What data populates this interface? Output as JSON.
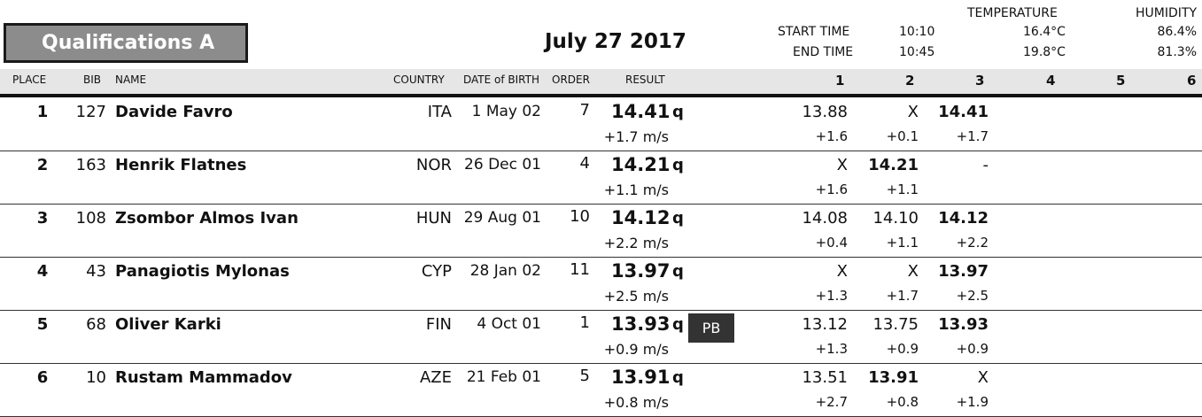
{
  "header": {
    "round": "Qualifications A",
    "date": "July 27 2017",
    "start_time_label": "START TIME",
    "end_time_label": "END TIME",
    "start_time": "10:10",
    "end_time": "10:45",
    "temperature_label": "TEMPERATURE",
    "humidity_label": "HUMIDITY",
    "start_temperature": "16.4°C",
    "end_temperature": "19.8°C",
    "start_humidity": "86.4%",
    "end_humidity": "81.3%"
  },
  "columns": {
    "place": "PLACE",
    "bib": "BIB",
    "name": "NAME",
    "country": "COUNTRY",
    "dob": "DATE of BIRTH",
    "order": "ORDER",
    "result": "RESULT",
    "attempts": [
      "1",
      "2",
      "3",
      "4",
      "5",
      "6"
    ]
  },
  "rows": [
    {
      "place": "1",
      "bib": "127",
      "name": "Davide Favro",
      "country": "ITA",
      "dob": "1 May 02",
      "order": "7",
      "result": "14.41",
      "q": "q",
      "wind": "+1.7 m/s",
      "badge": "",
      "attempts": [
        {
          "mark": "13.88",
          "wind": "+1.6",
          "best": false
        },
        {
          "mark": "X",
          "wind": "+0.1",
          "best": false
        },
        {
          "mark": "14.41",
          "wind": "+1.7",
          "best": true
        }
      ]
    },
    {
      "place": "2",
      "bib": "163",
      "name": "Henrik Flatnes",
      "country": "NOR",
      "dob": "26 Dec 01",
      "order": "4",
      "result": "14.21",
      "q": "q",
      "wind": "+1.1 m/s",
      "badge": "",
      "attempts": [
        {
          "mark": "X",
          "wind": "+1.6",
          "best": false
        },
        {
          "mark": "14.21",
          "wind": "+1.1",
          "best": true
        },
        {
          "mark": "-",
          "wind": "",
          "best": false
        }
      ]
    },
    {
      "place": "3",
      "bib": "108",
      "name": "Zsombor Almos Ivan",
      "country": "HUN",
      "dob": "29 Aug 01",
      "order": "10",
      "result": "14.12",
      "q": "q",
      "wind": "+2.2 m/s",
      "badge": "",
      "attempts": [
        {
          "mark": "14.08",
          "wind": "+0.4",
          "best": false
        },
        {
          "mark": "14.10",
          "wind": "+1.1",
          "best": false
        },
        {
          "mark": "14.12",
          "wind": "+2.2",
          "best": true
        }
      ]
    },
    {
      "place": "4",
      "bib": "43",
      "name": "Panagiotis Mylonas",
      "country": "CYP",
      "dob": "28 Jan 02",
      "order": "11",
      "result": "13.97",
      "q": "q",
      "wind": "+2.5 m/s",
      "badge": "",
      "attempts": [
        {
          "mark": "X",
          "wind": "+1.3",
          "best": false
        },
        {
          "mark": "X",
          "wind": "+1.7",
          "best": false
        },
        {
          "mark": "13.97",
          "wind": "+2.5",
          "best": true
        }
      ]
    },
    {
      "place": "5",
      "bib": "68",
      "name": "Oliver Karki",
      "country": "FIN",
      "dob": "4 Oct 01",
      "order": "1",
      "result": "13.93",
      "q": "q",
      "wind": "+0.9 m/s",
      "badge": "PB",
      "attempts": [
        {
          "mark": "13.12",
          "wind": "+1.3",
          "best": false
        },
        {
          "mark": "13.75",
          "wind": "+0.9",
          "best": false
        },
        {
          "mark": "13.93",
          "wind": "+0.9",
          "best": true
        }
      ]
    },
    {
      "place": "6",
      "bib": "10",
      "name": "Rustam Mammadov",
      "country": "AZE",
      "dob": "21 Feb 01",
      "order": "5",
      "result": "13.91",
      "q": "q",
      "wind": "+0.8 m/s",
      "badge": "",
      "attempts": [
        {
          "mark": "13.51",
          "wind": "+2.7",
          "best": false
        },
        {
          "mark": "13.91",
          "wind": "+0.8",
          "best": true
        },
        {
          "mark": "X",
          "wind": "+1.9",
          "best": false
        }
      ]
    }
  ]
}
